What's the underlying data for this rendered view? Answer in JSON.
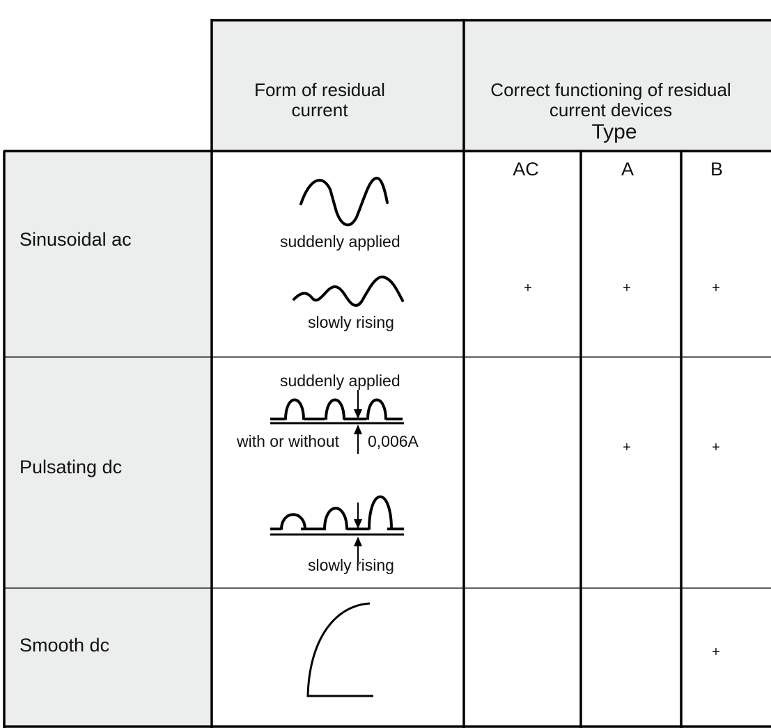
{
  "header": {
    "form_title": "Form of residual current",
    "form_lines": [
      "Form of residual",
      "current"
    ],
    "function_lines": [
      "Correct functioning of residual",
      "current devices"
    ],
    "type_word": "Type"
  },
  "types": [
    "AC",
    "A",
    "B"
  ],
  "rows": [
    {
      "label": "Sinusoidal ac",
      "waveforms": [
        "suddenly applied",
        "slowly rising"
      ],
      "marks": [
        "+",
        "+",
        "+"
      ]
    },
    {
      "label": "Pulsating dc",
      "waveforms": [
        "suddenly applied",
        "slowly rising"
      ],
      "offset_left": "with or without",
      "offset_right": "0,006A",
      "marks": [
        "",
        "+",
        "+"
      ]
    },
    {
      "label": "Smooth dc",
      "waveforms": [],
      "marks": [
        "",
        "",
        "+"
      ]
    }
  ],
  "colors": {
    "shaded": "#eceded",
    "line": "#000000",
    "text": "#111111"
  }
}
